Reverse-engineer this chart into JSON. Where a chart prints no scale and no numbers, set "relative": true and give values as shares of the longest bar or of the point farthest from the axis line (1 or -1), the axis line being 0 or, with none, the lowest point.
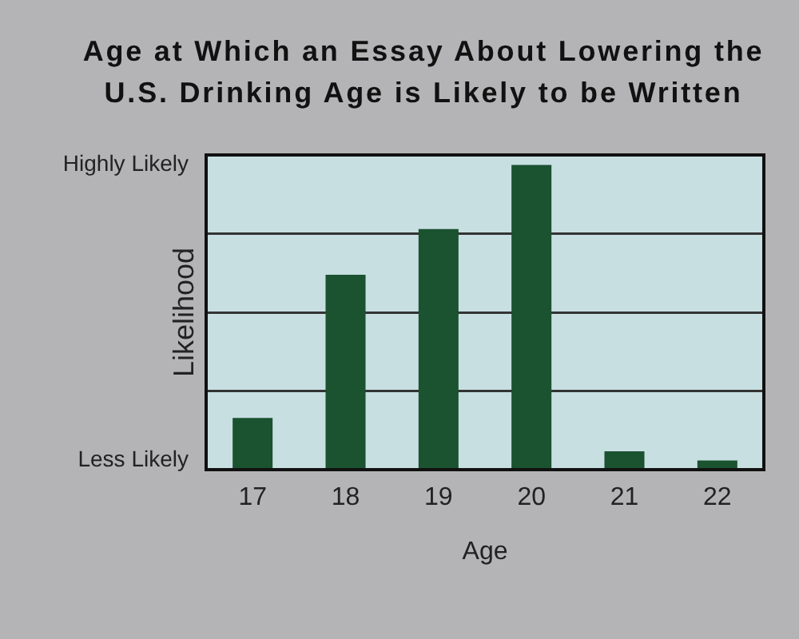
{
  "chart_data": {
    "type": "bar",
    "title": "Age at Which an Essay About Lowering the U.S. Drinking Age is Likely to be Written",
    "xlabel": "Age",
    "ylabel": "Likelihood",
    "annotations": [
      "Highly Likely",
      "Less Likely"
    ],
    "categories": [
      "17",
      "18",
      "19",
      "20",
      "21",
      "22"
    ],
    "values": [
      0.17,
      0.64,
      0.79,
      1,
      0.06,
      0.03
    ],
    "color": "#1b5230",
    "relative": true,
    "grid": true
  }
}
